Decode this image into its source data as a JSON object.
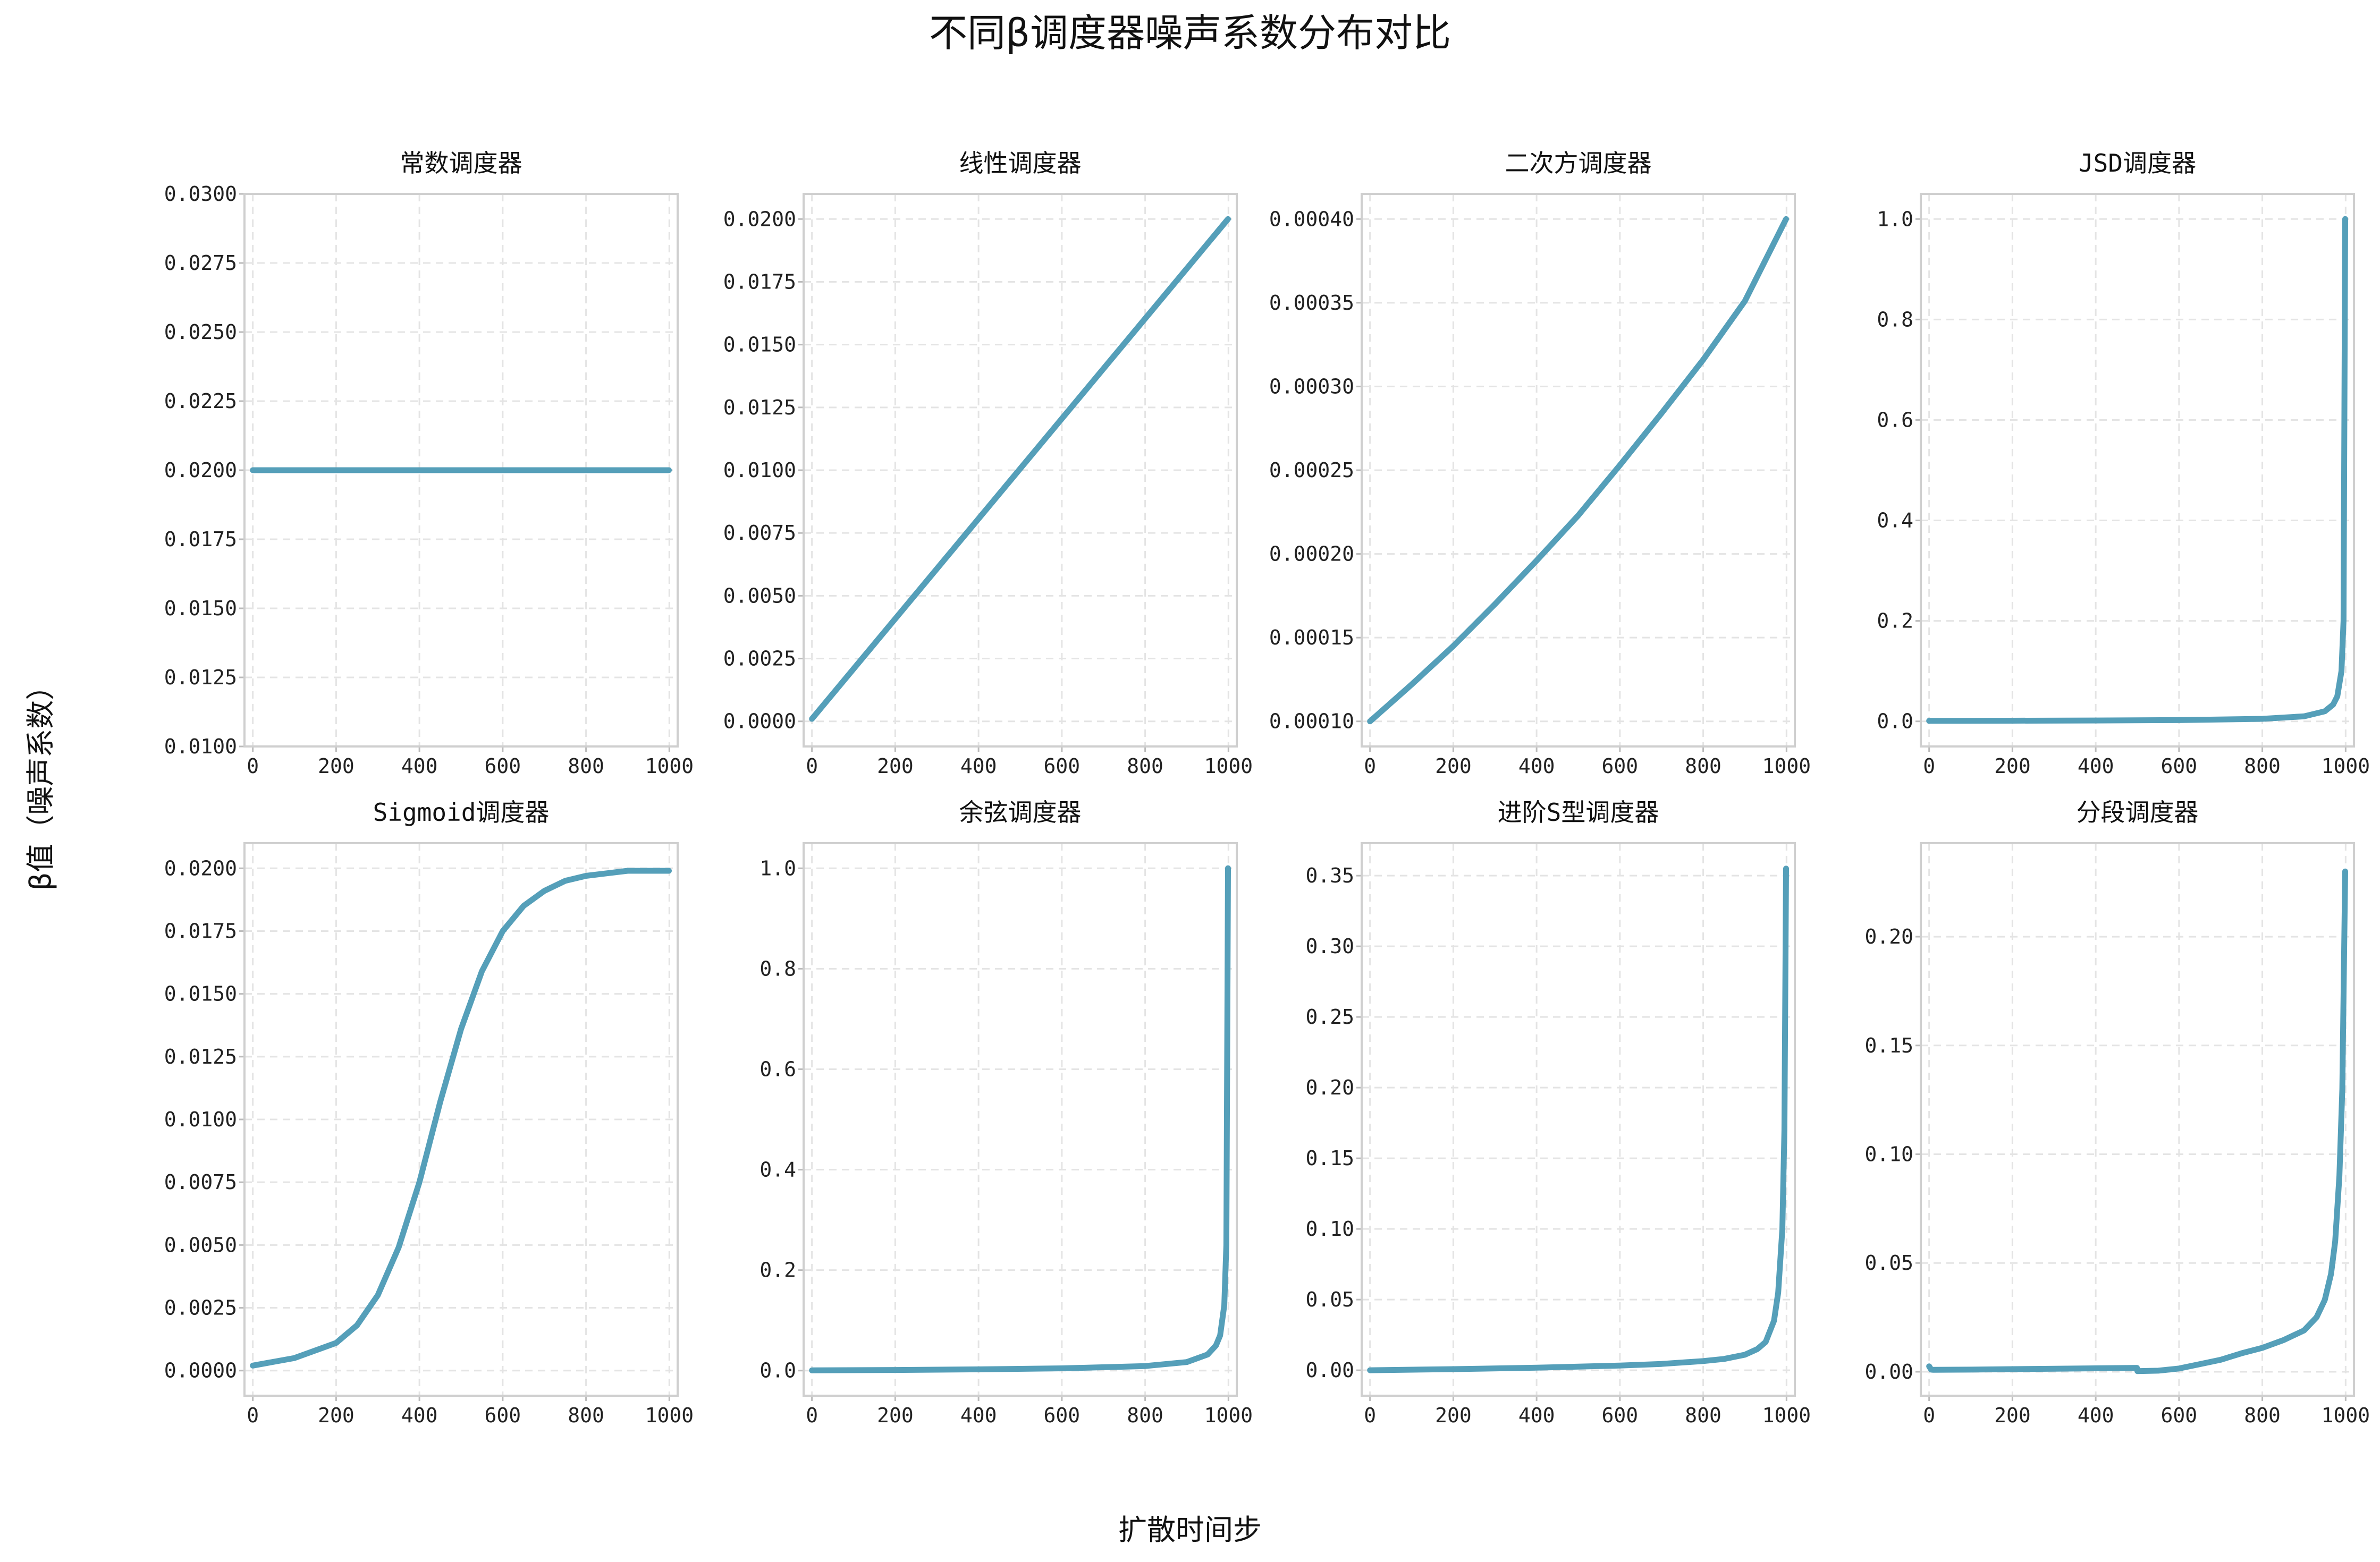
{
  "figure": {
    "title": "不同β调度器噪声系数分布对比",
    "xlabel": "扩散时间步",
    "ylabel": "β值（噪声系数）",
    "line_color": "#559fb9"
  },
  "chart_data": [
    {
      "type": "line",
      "title": "常数调度器",
      "xlim": [
        -20,
        1020
      ],
      "ylim": [
        0.01,
        0.03
      ],
      "xticks": [
        0,
        200,
        400,
        600,
        800,
        1000
      ],
      "xtick_labels": [
        "0",
        "200",
        "400",
        "600",
        "800",
        "1000"
      ],
      "yticks": [
        0.01,
        0.0125,
        0.015,
        0.0175,
        0.02,
        0.0225,
        0.025,
        0.0275,
        0.03
      ],
      "ytick_labels": [
        "0.0100",
        "0.0125",
        "0.0150",
        "0.0175",
        "0.0200",
        "0.0225",
        "0.0250",
        "0.0275",
        "0.0300"
      ],
      "grid": true,
      "x": [
        0,
        200,
        400,
        600,
        800,
        999
      ],
      "y": [
        0.02,
        0.02,
        0.02,
        0.02,
        0.02,
        0.02
      ]
    },
    {
      "type": "line",
      "title": "线性调度器",
      "xlim": [
        -20,
        1020
      ],
      "ylim": [
        -0.001,
        0.021
      ],
      "xticks": [
        0,
        200,
        400,
        600,
        800,
        1000
      ],
      "xtick_labels": [
        "0",
        "200",
        "400",
        "600",
        "800",
        "1000"
      ],
      "yticks": [
        0,
        0.0025,
        0.005,
        0.0075,
        0.01,
        0.0125,
        0.015,
        0.0175,
        0.02
      ],
      "ytick_labels": [
        "0.0000",
        "0.0025",
        "0.0050",
        "0.0075",
        "0.0100",
        "0.0125",
        "0.0150",
        "0.0175",
        "0.0200"
      ],
      "grid": true,
      "x": [
        0,
        999
      ],
      "y": [
        0.0001,
        0.02
      ]
    },
    {
      "type": "line",
      "title": "二次方调度器",
      "xlim": [
        -20,
        1020
      ],
      "ylim": [
        8.5e-05,
        0.000415
      ],
      "xticks": [
        0,
        200,
        400,
        600,
        800,
        1000
      ],
      "xtick_labels": [
        "0",
        "200",
        "400",
        "600",
        "800",
        "1000"
      ],
      "yticks": [
        0.0001,
        0.00015,
        0.0002,
        0.00025,
        0.0003,
        0.00035,
        0.0004
      ],
      "ytick_labels": [
        "0.00010",
        "0.00015",
        "0.00020",
        "0.00025",
        "0.00030",
        "0.00035",
        "0.00040"
      ],
      "grid": true,
      "x": [
        0,
        100,
        200,
        300,
        400,
        500,
        600,
        700,
        800,
        900,
        999
      ],
      "y": [
        0.0001,
        0.000122,
        0.000145,
        0.00017,
        0.000196,
        0.000223,
        0.000253,
        0.000284,
        0.000316,
        0.000351,
        0.0004
      ]
    },
    {
      "type": "line",
      "title": "JSD调度器",
      "xlim": [
        -20,
        1020
      ],
      "ylim": [
        -0.05,
        1.05
      ],
      "xticks": [
        0,
        200,
        400,
        600,
        800,
        1000
      ],
      "xtick_labels": [
        "0",
        "200",
        "400",
        "600",
        "800",
        "1000"
      ],
      "yticks": [
        0,
        0.2,
        0.4,
        0.6,
        0.8,
        1.0
      ],
      "ytick_labels": [
        "0.0",
        "0.2",
        "0.4",
        "0.6",
        "0.8",
        "1.0"
      ],
      "grid": true,
      "x": [
        0,
        200,
        400,
        600,
        800,
        900,
        950,
        970,
        980,
        990,
        995,
        999
      ],
      "y": [
        0.001,
        0.00125,
        0.00167,
        0.0025,
        0.005,
        0.01,
        0.02,
        0.0333,
        0.05,
        0.1,
        0.2,
        1.0
      ]
    },
    {
      "type": "line",
      "title": "Sigmoid调度器",
      "xlim": [
        -20,
        1020
      ],
      "ylim": [
        -0.001,
        0.021
      ],
      "xticks": [
        0,
        200,
        400,
        600,
        800,
        1000
      ],
      "xtick_labels": [
        "0",
        "200",
        "400",
        "600",
        "800",
        "1000"
      ],
      "yticks": [
        0,
        0.0025,
        0.005,
        0.0075,
        0.01,
        0.0125,
        0.015,
        0.0175,
        0.02
      ],
      "ytick_labels": [
        "0.0000",
        "0.0025",
        "0.0050",
        "0.0075",
        "0.0100",
        "0.0125",
        "0.0150",
        "0.0175",
        "0.0200"
      ],
      "grid": true,
      "x": [
        0,
        100,
        200,
        250,
        300,
        350,
        400,
        450,
        500,
        550,
        600,
        650,
        700,
        750,
        800,
        900,
        999
      ],
      "y": [
        0.0002,
        0.0005,
        0.0011,
        0.0018,
        0.003,
        0.0049,
        0.0075,
        0.0107,
        0.0136,
        0.0159,
        0.0175,
        0.0185,
        0.0191,
        0.0195,
        0.0197,
        0.0199,
        0.0199
      ]
    },
    {
      "type": "line",
      "title": "余弦调度器",
      "xlim": [
        -20,
        1020
      ],
      "ylim": [
        -0.05,
        1.05
      ],
      "xticks": [
        0,
        200,
        400,
        600,
        800,
        1000
      ],
      "xtick_labels": [
        "0",
        "200",
        "400",
        "600",
        "800",
        "1000"
      ],
      "yticks": [
        0,
        0.2,
        0.4,
        0.6,
        0.8,
        1.0
      ],
      "ytick_labels": [
        "0.0",
        "0.2",
        "0.4",
        "0.6",
        "0.8",
        "1.0"
      ],
      "grid": true,
      "x": [
        0,
        200,
        400,
        600,
        800,
        900,
        950,
        970,
        980,
        990,
        995,
        999
      ],
      "y": [
        0.0004,
        0.0012,
        0.0025,
        0.0045,
        0.009,
        0.017,
        0.032,
        0.05,
        0.07,
        0.13,
        0.25,
        1.0
      ]
    },
    {
      "type": "line",
      "title": "进阶S型调度器",
      "xlim": [
        -20,
        1020
      ],
      "ylim": [
        -0.018,
        0.373
      ],
      "xticks": [
        0,
        200,
        400,
        600,
        800,
        1000
      ],
      "xtick_labels": [
        "0",
        "200",
        "400",
        "600",
        "800",
        "1000"
      ],
      "yticks": [
        0,
        0.05,
        0.1,
        0.15,
        0.2,
        0.25,
        0.3,
        0.35
      ],
      "ytick_labels": [
        "0.00",
        "0.05",
        "0.10",
        "0.15",
        "0.20",
        "0.25",
        "0.30",
        "0.35"
      ],
      "grid": true,
      "x": [
        0,
        200,
        400,
        600,
        700,
        800,
        850,
        900,
        930,
        950,
        970,
        980,
        990,
        995,
        999
      ],
      "y": [
        0.0,
        0.0008,
        0.0018,
        0.0033,
        0.0045,
        0.0065,
        0.008,
        0.011,
        0.015,
        0.02,
        0.035,
        0.055,
        0.1,
        0.17,
        0.355
      ]
    },
    {
      "type": "line",
      "title": "分段调度器",
      "xlim": [
        -20,
        1020
      ],
      "ylim": [
        -0.011,
        0.243
      ],
      "xticks": [
        0,
        200,
        400,
        600,
        800,
        1000
      ],
      "xtick_labels": [
        "0",
        "200",
        "400",
        "600",
        "800",
        "1000"
      ],
      "yticks": [
        0,
        0.05,
        0.1,
        0.15,
        0.2
      ],
      "ytick_labels": [
        "0.00",
        "0.05",
        "0.10",
        "0.15",
        "0.20"
      ],
      "grid": true,
      "x": [
        0,
        5,
        10,
        100,
        200,
        300,
        400,
        499,
        500,
        550,
        600,
        650,
        700,
        750,
        800,
        850,
        900,
        930,
        950,
        965,
        975,
        985,
        992,
        999
      ],
      "y": [
        0.0025,
        0.001,
        0.0009,
        0.001,
        0.0012,
        0.0014,
        0.0016,
        0.0018,
        0.0003,
        0.0005,
        0.0015,
        0.0035,
        0.0055,
        0.0085,
        0.011,
        0.0145,
        0.019,
        0.025,
        0.033,
        0.045,
        0.06,
        0.09,
        0.13,
        0.23
      ]
    }
  ]
}
